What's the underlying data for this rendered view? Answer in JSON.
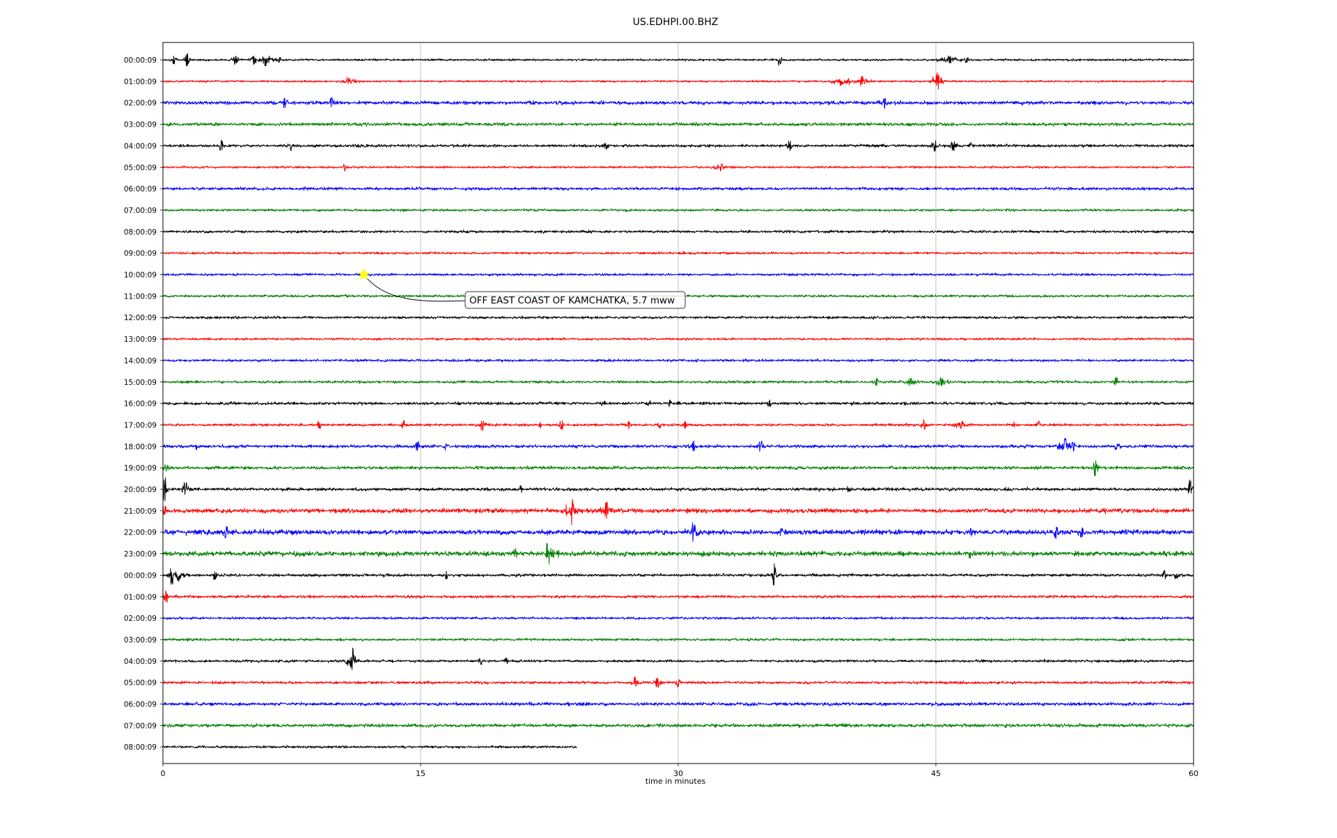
{
  "chart_data": {
    "type": "line",
    "title": "US.EDHPI.00.BHZ",
    "xlabel": "time in minutes",
    "ylabel": "",
    "xlim": [
      0,
      60
    ],
    "x_ticks": [
      "0",
      "15",
      "30",
      "45",
      "60"
    ],
    "x_tick_values": [
      0,
      15,
      30,
      45,
      60
    ],
    "vertical_gridlines_at": [
      15,
      30,
      45
    ],
    "grid": "vertical",
    "legend": "none",
    "trace_colors": [
      "#000000",
      "#ff0000",
      "#0000ff",
      "#007f00"
    ],
    "rows": [
      {
        "label": "00:00:09",
        "end_minute": 60,
        "noise": 1.3,
        "events": [
          [
            0.6,
            0.35,
            7
          ],
          [
            1.4,
            0.3,
            9
          ],
          [
            4.2,
            0.4,
            7
          ],
          [
            5.3,
            0.5,
            7
          ],
          [
            6.0,
            0.8,
            10
          ],
          [
            6.8,
            0.5,
            4
          ],
          [
            35.9,
            0.25,
            8
          ],
          [
            45.8,
            1.0,
            7
          ],
          [
            46.8,
            0.6,
            4
          ]
        ]
      },
      {
        "label": "01:00:09",
        "end_minute": 60,
        "noise": 1.2,
        "events": [
          [
            10.8,
            1.0,
            6
          ],
          [
            39.5,
            0.9,
            9
          ],
          [
            40.7,
            0.8,
            8
          ],
          [
            45.1,
            0.5,
            13
          ]
        ]
      },
      {
        "label": "02:00:09",
        "end_minute": 60,
        "noise": 2.2,
        "events": [
          [
            7.1,
            0.5,
            9
          ],
          [
            9.8,
            0.6,
            8
          ],
          [
            42.0,
            0.5,
            9
          ]
        ]
      },
      {
        "label": "03:00:09",
        "end_minute": 60,
        "noise": 2.0,
        "events": []
      },
      {
        "label": "04:00:09",
        "end_minute": 60,
        "noise": 1.8,
        "events": [
          [
            3.4,
            0.3,
            8
          ],
          [
            7.4,
            0.3,
            9
          ],
          [
            25.8,
            0.4,
            6
          ],
          [
            36.5,
            0.3,
            8
          ],
          [
            44.9,
            0.3,
            11
          ],
          [
            46.0,
            0.4,
            8
          ],
          [
            47.1,
            0.4,
            7
          ]
        ]
      },
      {
        "label": "05:00:09",
        "end_minute": 60,
        "noise": 1.3,
        "events": [
          [
            10.6,
            0.3,
            6
          ],
          [
            32.5,
            1.2,
            6
          ]
        ]
      },
      {
        "label": "06:00:09",
        "end_minute": 60,
        "noise": 1.8,
        "events": []
      },
      {
        "label": "07:00:09",
        "end_minute": 60,
        "noise": 1.5,
        "events": []
      },
      {
        "label": "08:00:09",
        "end_minute": 60,
        "noise": 1.6,
        "events": []
      },
      {
        "label": "09:00:09",
        "end_minute": 60,
        "noise": 1.4,
        "events": []
      },
      {
        "label": "10:00:09",
        "end_minute": 60,
        "noise": 1.5,
        "events": []
      },
      {
        "label": "11:00:09",
        "end_minute": 60,
        "noise": 1.5,
        "events": []
      },
      {
        "label": "12:00:09",
        "end_minute": 60,
        "noise": 1.6,
        "events": []
      },
      {
        "label": "13:00:09",
        "end_minute": 60,
        "noise": 1.4,
        "events": []
      },
      {
        "label": "14:00:09",
        "end_minute": 60,
        "noise": 1.6,
        "events": []
      },
      {
        "label": "15:00:09",
        "end_minute": 60,
        "noise": 1.6,
        "events": [
          [
            41.5,
            0.4,
            6
          ],
          [
            43.5,
            1.0,
            6
          ],
          [
            45.3,
            0.8,
            8
          ],
          [
            55.5,
            0.3,
            7
          ]
        ]
      },
      {
        "label": "16:00:09",
        "end_minute": 60,
        "noise": 1.8,
        "events": [
          [
            25.6,
            0.3,
            6
          ],
          [
            28.3,
            0.3,
            5
          ],
          [
            29.5,
            0.2,
            5
          ],
          [
            35.3,
            0.3,
            6
          ]
        ]
      },
      {
        "label": "17:00:09",
        "end_minute": 60,
        "noise": 1.6,
        "events": [
          [
            9.1,
            0.3,
            6
          ],
          [
            14.0,
            0.3,
            8
          ],
          [
            18.6,
            0.4,
            8
          ],
          [
            22.0,
            0.2,
            5
          ],
          [
            23.2,
            0.3,
            8
          ],
          [
            27.1,
            0.3,
            6
          ],
          [
            28.9,
            0.3,
            5
          ],
          [
            30.4,
            0.4,
            5
          ],
          [
            44.3,
            0.4,
            9
          ],
          [
            46.5,
            0.8,
            6
          ],
          [
            49.5,
            0.3,
            5
          ],
          [
            51.0,
            0.3,
            6
          ]
        ]
      },
      {
        "label": "18:00:09",
        "end_minute": 60,
        "noise": 2.0,
        "events": [
          [
            2.0,
            0.4,
            5
          ],
          [
            14.8,
            0.3,
            8
          ],
          [
            16.5,
            0.3,
            6
          ],
          [
            30.9,
            0.5,
            8
          ],
          [
            34.8,
            0.4,
            8
          ],
          [
            52.5,
            0.7,
            12
          ],
          [
            53.0,
            0.3,
            8
          ],
          [
            55.5,
            0.5,
            6
          ]
        ]
      },
      {
        "label": "19:00:09",
        "end_minute": 60,
        "noise": 2.0,
        "events": [
          [
            0.2,
            0.4,
            7
          ],
          [
            54.3,
            0.3,
            14
          ]
        ]
      },
      {
        "label": "20:00:09",
        "end_minute": 60,
        "noise": 2.0,
        "events": [
          [
            0.1,
            0.3,
            18
          ],
          [
            1.3,
            0.4,
            11
          ],
          [
            20.8,
            0.2,
            6
          ],
          [
            39.9,
            0.3,
            6
          ],
          [
            59.8,
            0.2,
            17
          ]
        ]
      },
      {
        "label": "21:00:09",
        "end_minute": 60,
        "noise": 2.8,
        "events": [
          [
            0.1,
            0.2,
            8
          ],
          [
            23.8,
            0.5,
            22
          ],
          [
            25.8,
            0.6,
            13
          ],
          [
            59.5,
            0.3,
            6
          ]
        ]
      },
      {
        "label": "22:00:09",
        "end_minute": 60,
        "noise": 3.0,
        "events": [
          [
            3.7,
            0.5,
            10
          ],
          [
            30.9,
            0.7,
            14
          ],
          [
            36.0,
            1.0,
            6
          ],
          [
            47.0,
            0.7,
            6
          ],
          [
            52.0,
            0.5,
            11
          ],
          [
            53.5,
            0.5,
            9
          ]
        ]
      },
      {
        "label": "23:00:09",
        "end_minute": 60,
        "noise": 3.0,
        "events": [
          [
            20.5,
            0.2,
            12
          ],
          [
            22.4,
            0.5,
            16
          ],
          [
            23.0,
            0.8,
            6
          ],
          [
            47.0,
            0.4,
            7
          ]
        ]
      },
      {
        "label": "00:00:09",
        "end_minute": 60,
        "noise": 1.8,
        "events": [
          [
            0.5,
            0.3,
            14
          ],
          [
            0.9,
            0.7,
            9
          ],
          [
            3.0,
            0.4,
            7
          ],
          [
            16.5,
            0.2,
            6
          ],
          [
            35.6,
            0.2,
            17
          ],
          [
            58.3,
            0.3,
            7
          ],
          [
            59.0,
            0.3,
            7
          ]
        ]
      },
      {
        "label": "01:00:09",
        "end_minute": 60,
        "noise": 1.7,
        "events": [
          [
            0.2,
            0.3,
            9
          ]
        ]
      },
      {
        "label": "02:00:09",
        "end_minute": 60,
        "noise": 1.5,
        "events": []
      },
      {
        "label": "03:00:09",
        "end_minute": 60,
        "noise": 1.6,
        "events": [
          [
            1.5,
            0.2,
            4
          ]
        ]
      },
      {
        "label": "04:00:09",
        "end_minute": 60,
        "noise": 1.6,
        "events": [
          [
            11.0,
            0.4,
            23
          ],
          [
            18.5,
            0.4,
            5
          ],
          [
            20.0,
            0.3,
            5
          ]
        ]
      },
      {
        "label": "05:00:09",
        "end_minute": 60,
        "noise": 1.7,
        "events": [
          [
            27.5,
            0.5,
            8
          ],
          [
            28.8,
            0.6,
            8
          ],
          [
            30.0,
            0.3,
            7
          ]
        ]
      },
      {
        "label": "06:00:09",
        "end_minute": 60,
        "noise": 2.0,
        "events": []
      },
      {
        "label": "07:00:09",
        "end_minute": 60,
        "noise": 2.1,
        "events": []
      },
      {
        "label": "08:00:09",
        "end_minute": 24.1,
        "noise": 1.6,
        "events": []
      }
    ],
    "annotations": [
      {
        "text": "OFF EAST COAST OF KAMCHATKA, 5.7 mww",
        "row_index": 10,
        "minute": 11.7,
        "marker": "star",
        "marker_color": "#ffff00"
      }
    ]
  }
}
